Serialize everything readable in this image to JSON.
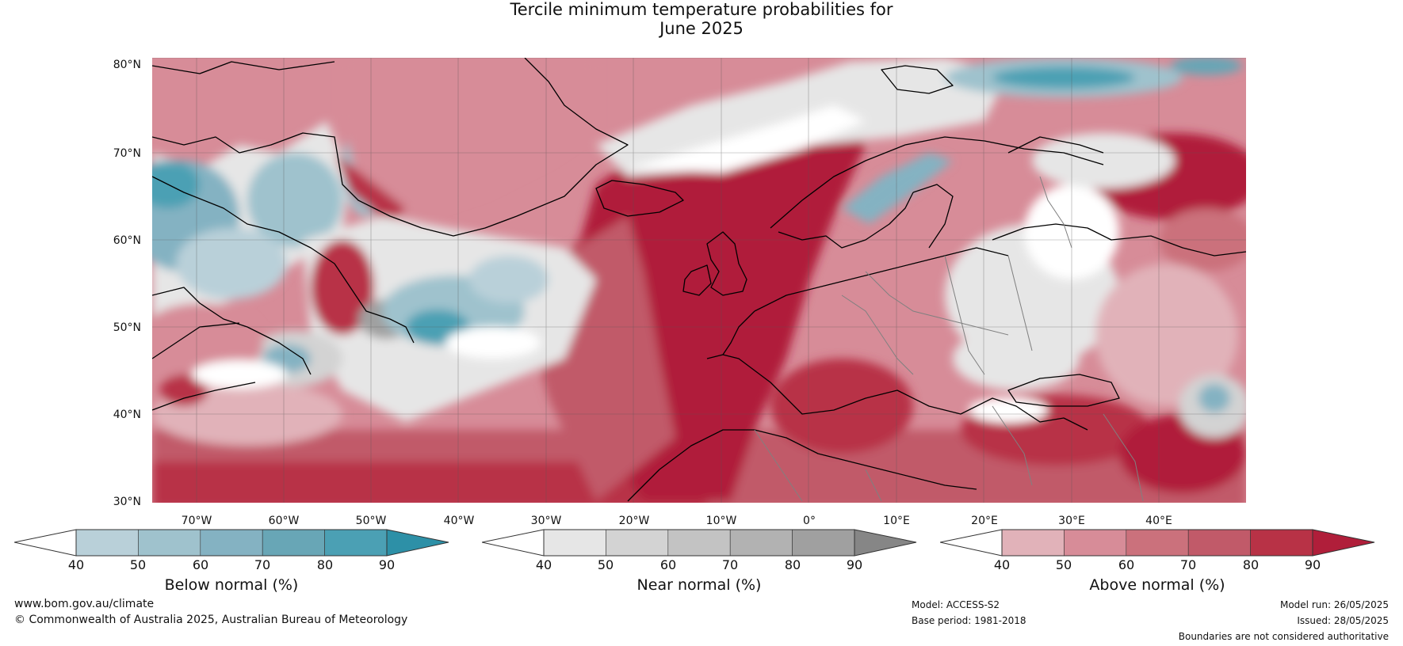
{
  "title": {
    "line1": "Tercile minimum temperature probabilities for",
    "line2": "June 2025"
  },
  "map": {
    "region": "North Atlantic and Europe",
    "lat_labels": [
      "80°N",
      "70°N",
      "60°N",
      "50°N",
      "40°N",
      "30°N"
    ],
    "lon_labels": [
      "70°W",
      "60°W",
      "50°W",
      "40°W",
      "30°W",
      "20°W",
      "10°W",
      "0°",
      "10°E",
      "20°E",
      "30°E",
      "40°E"
    ],
    "colors": {
      "below": [
        "#b9d0d9",
        "#9fc2cd",
        "#84b2c2",
        "#68a6b6",
        "#4ba0b4",
        "#2d90a7"
      ],
      "near": [
        "#e6e6e6",
        "#d3d3d3",
        "#c3c3c3",
        "#b2b2b2",
        "#a0a0a0",
        "#868686"
      ],
      "above": [
        "#e1b2b9",
        "#d78c98",
        "#cb717c",
        "#c15a69",
        "#b83246",
        "#b01e3a"
      ],
      "land_outline": "#000000",
      "border": "#808080"
    }
  },
  "legend": {
    "below": {
      "title": "Below normal (%)",
      "ticks": [
        "40",
        "50",
        "60",
        "70",
        "80",
        "90"
      ]
    },
    "near": {
      "title": "Near normal (%)",
      "ticks": [
        "40",
        "50",
        "60",
        "70",
        "80",
        "90"
      ]
    },
    "above": {
      "title": "Above normal (%)",
      "ticks": [
        "40",
        "50",
        "60",
        "70",
        "80",
        "90"
      ]
    }
  },
  "footer": {
    "website": "www.bom.gov.au/climate",
    "copyright": "© Commonwealth of Australia 2025, Australian Bureau of Meteorology",
    "model": "Model: ACCESS-S2",
    "base_period": "Base period: 1981-2018",
    "model_run": "Model run: 26/05/2025",
    "issued": "Issued: 28/05/2025",
    "disclaimer": "Boundaries are not considered authoritative"
  }
}
